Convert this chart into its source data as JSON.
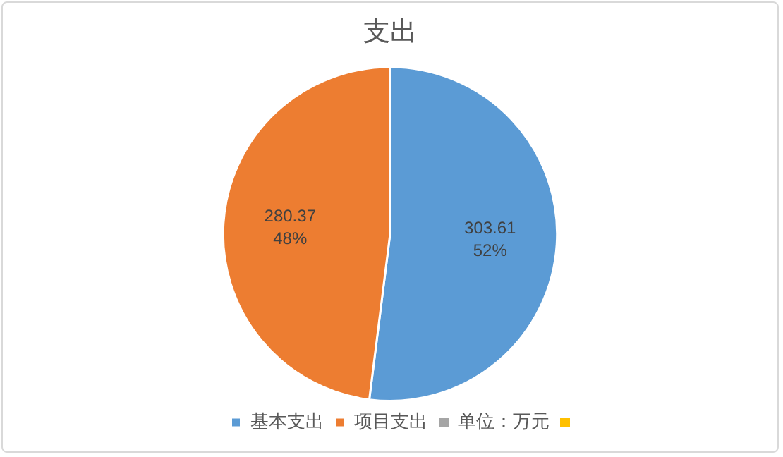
{
  "chart_data": {
    "type": "pie",
    "title": "支出",
    "categories": [
      "基本支出",
      "项目支出"
    ],
    "values": [
      303.61,
      280.37
    ],
    "colors": [
      "#5b9bd5",
      "#ed7d31"
    ],
    "value_labels": [
      "303.61\n52%",
      "280.37\n48%"
    ],
    "annotations": [
      "单位：万元"
    ],
    "legend": "bottom"
  }
}
